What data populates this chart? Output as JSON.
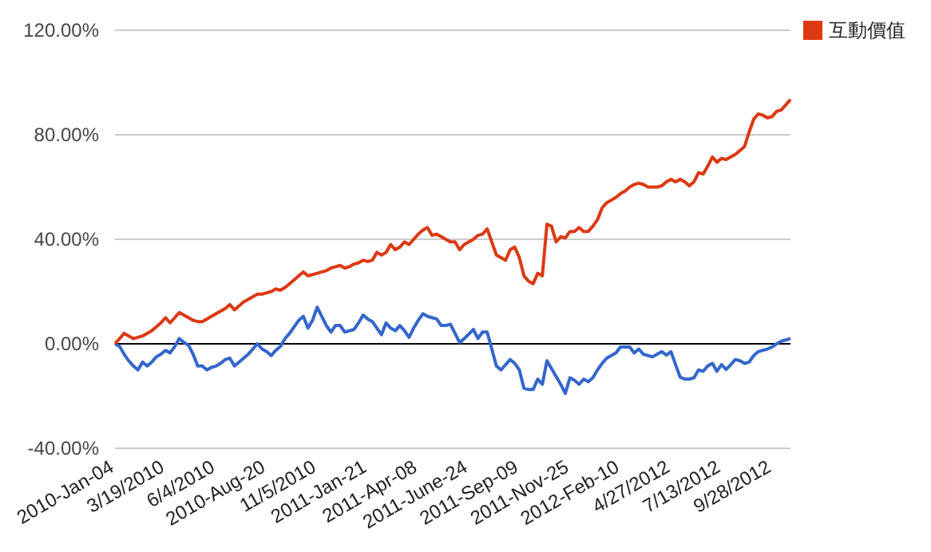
{
  "chart_data": {
    "type": "line",
    "categories": [
      "2010-Jan-04",
      null,
      null,
      null,
      null,
      null,
      null,
      null,
      null,
      null,
      null,
      "3/19/2010",
      null,
      null,
      null,
      null,
      null,
      null,
      null,
      null,
      null,
      null,
      "6/4/2010",
      null,
      null,
      null,
      null,
      null,
      null,
      null,
      null,
      null,
      null,
      "2010-Aug-20",
      null,
      null,
      null,
      null,
      null,
      null,
      null,
      null,
      null,
      null,
      "11/5/2010",
      null,
      null,
      null,
      null,
      null,
      null,
      null,
      null,
      null,
      null,
      "2011-Jan-21",
      null,
      null,
      null,
      null,
      null,
      null,
      null,
      null,
      null,
      null,
      "2011-Apr-08",
      null,
      null,
      null,
      null,
      null,
      null,
      null,
      null,
      null,
      null,
      "2011-June-24",
      null,
      null,
      null,
      null,
      null,
      null,
      null,
      null,
      null,
      null,
      "2011-Sep-09",
      null,
      null,
      null,
      null,
      null,
      null,
      null,
      null,
      null,
      null,
      "2011-Nov-25",
      null,
      null,
      null,
      null,
      null,
      null,
      null,
      null,
      null,
      null,
      "2012-Feb-10",
      null,
      null,
      null,
      null,
      null,
      null,
      null,
      null,
      null,
      null,
      "4/27/2012",
      null,
      null,
      null,
      null,
      null,
      null,
      null,
      null,
      null,
      null,
      "7/13/2012",
      null,
      null,
      null,
      null,
      null,
      null,
      null,
      null,
      null,
      null,
      "9/28/2012",
      null,
      null,
      null,
      null
    ],
    "series": [
      {
        "color": "#3366cc",
        "values": [
          0,
          -1,
          -4,
          -6.5,
          -8.5,
          -10,
          -7,
          -8.5,
          -7,
          -5,
          -4,
          -2.5,
          -3.5,
          -1,
          2,
          0.5,
          -0.5,
          -4,
          -8.5,
          -8.5,
          -10,
          -9,
          -8.5,
          -7.5,
          -6,
          -5.5,
          -8.5,
          -7,
          -5.5,
          -4,
          -2,
          0,
          -2,
          -3,
          -4.5,
          -2.5,
          -1,
          2,
          4,
          6.5,
          9,
          10.5,
          6,
          9,
          14,
          10.5,
          7,
          4.5,
          7,
          7,
          4.5,
          5,
          5.5,
          8,
          11,
          9.5,
          8.5,
          6,
          3.5,
          8,
          6,
          5,
          7,
          5,
          2.5,
          6,
          9,
          11.5,
          10.5,
          10,
          9.5,
          7,
          7,
          7.5,
          4,
          0.5,
          2,
          3.7,
          5.5,
          2,
          4.5,
          4.5,
          -2,
          -8.5,
          -10,
          -8,
          -6,
          -7.5,
          -10,
          -17,
          -17.5,
          -17.5,
          -13.5,
          -15.5,
          -6.5,
          -9.5,
          -12.5,
          -15.5,
          -19,
          -13,
          -14,
          -15.5,
          -13.5,
          -14.5,
          -13,
          -10,
          -7.5,
          -5.5,
          -4.5,
          -3.5,
          -1.2,
          -1.2,
          -1.2,
          -3.5,
          -2,
          -4,
          -4.5,
          -5,
          -4,
          -3,
          -4.3,
          -3,
          -8,
          -12.8,
          -13.5,
          -13.5,
          -13,
          -10,
          -10.5,
          -8.5,
          -7.5,
          -10.5,
          -8,
          -9.8,
          -8,
          -6,
          -6.5,
          -7.5,
          -7,
          -4.5,
          -3,
          -2.5,
          -2,
          -1.2,
          0,
          1,
          1.5,
          2
        ]
      },
      {
        "name": "互動價值",
        "color": "#dc3912",
        "values": [
          0,
          2,
          4,
          3,
          2,
          2.5,
          3,
          4,
          5,
          6.5,
          8,
          10,
          8,
          10,
          12,
          11,
          10,
          9,
          8.5,
          8.5,
          9.5,
          10.5,
          11.5,
          12.5,
          13.5,
          15,
          13,
          14.5,
          16,
          17,
          18,
          19,
          19,
          19.5,
          20,
          21,
          20.5,
          21.5,
          23,
          24.5,
          26,
          27.5,
          26,
          26.5,
          27,
          27.5,
          28,
          29,
          29.5,
          30,
          29,
          29.5,
          30.5,
          31,
          32,
          31.5,
          32,
          35,
          34,
          35,
          38,
          36,
          37,
          39,
          38,
          40,
          42,
          43.5,
          44.5,
          41.5,
          42,
          41,
          40,
          39,
          39,
          36,
          38,
          39,
          40,
          41.5,
          42,
          44,
          39,
          34,
          33,
          32,
          36,
          37,
          33,
          26,
          24,
          23,
          27,
          26,
          45.8,
          45,
          39,
          41,
          40.5,
          43,
          43,
          44.5,
          43,
          43,
          45,
          47.5,
          52,
          54,
          55,
          56,
          57.5,
          58.5,
          60,
          61,
          61.5,
          61,
          60,
          60,
          60,
          60.5,
          62,
          63,
          62,
          63,
          62,
          60.5,
          62,
          65.5,
          65,
          68,
          71.5,
          69.5,
          71,
          70.5,
          71.5,
          72.5,
          74,
          75.5,
          81,
          86,
          88,
          87.5,
          86.5,
          87,
          89,
          89.5,
          91.5,
          93.5
        ]
      }
    ],
    "ylim": [
      -40,
      120
    ],
    "yticks": [
      {
        "value": -40,
        "label": "-40.00%"
      },
      {
        "value": 0,
        "label": "0.00%"
      },
      {
        "value": 40,
        "label": "40.00%"
      },
      {
        "value": 80,
        "label": "80.00%"
      },
      {
        "value": 120,
        "label": "120.00%"
      }
    ],
    "grid": "y",
    "ref_lines": [
      {
        "axis": "y",
        "value": 0,
        "color": "#000000"
      }
    ],
    "legend": "top right"
  }
}
